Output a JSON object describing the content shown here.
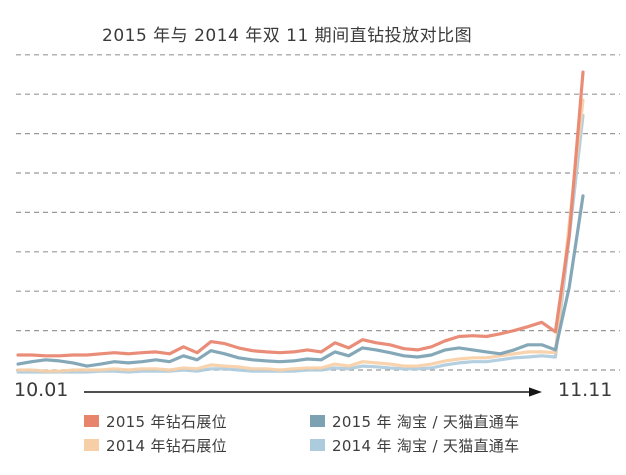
{
  "chart_data": {
    "type": "line",
    "title": "2015 年与 2014 年双 11 期间直钻投放对比图",
    "x_axis": {
      "start_label": "10.01",
      "end_label": "11.11"
    },
    "y_axis_labels_visible": false,
    "gridlines": 9,
    "grid_style": "dashed",
    "grid_color": "#999999",
    "legend_position": "bottom",
    "x": [
      "10.01",
      "10.02",
      "10.03",
      "10.04",
      "10.05",
      "10.06",
      "10.07",
      "10.08",
      "10.09",
      "10.10",
      "10.11",
      "10.12",
      "10.13",
      "10.14",
      "10.15",
      "10.16",
      "10.17",
      "10.18",
      "10.19",
      "10.20",
      "10.21",
      "10.22",
      "10.23",
      "10.24",
      "10.25",
      "10.26",
      "10.27",
      "10.28",
      "10.29",
      "10.30",
      "10.31",
      "11.01",
      "11.02",
      "11.03",
      "11.04",
      "11.05",
      "11.06",
      "11.07",
      "11.08",
      "11.09",
      "11.10",
      "11.11"
    ],
    "y_unit_note": "values in gridline units, 0 = bottom gridline, 1 per gridline step",
    "ylim": [
      -0.1,
      8.2
    ],
    "series": [
      {
        "name": "2014 年 淘宝 / 天猫直通车",
        "color": "#ACCBDD",
        "values": [
          -0.05,
          -0.05,
          -0.05,
          -0.05,
          -0.05,
          -0.05,
          -0.03,
          -0.03,
          -0.05,
          -0.03,
          -0.03,
          -0.03,
          0,
          -0.03,
          0.03,
          0.03,
          0,
          -0.03,
          -0.03,
          -0.03,
          -0.03,
          0,
          0,
          0.05,
          0.03,
          0.1,
          0.08,
          0.05,
          0.03,
          0.03,
          0.05,
          0.13,
          0.18,
          0.21,
          0.21,
          0.26,
          0.31,
          0.33,
          0.36,
          0.33,
          3.38,
          6.46
        ]
      },
      {
        "name": "2014 年钻石展位",
        "color": "#F7CFA6",
        "values": [
          0,
          0,
          -0.03,
          -0.03,
          0,
          0,
          0,
          0.03,
          0,
          0.03,
          0.03,
          0,
          0.05,
          0.03,
          0.13,
          0.1,
          0.08,
          0.03,
          0.03,
          0,
          0.03,
          0.05,
          0.05,
          0.15,
          0.1,
          0.21,
          0.18,
          0.15,
          0.1,
          0.1,
          0.15,
          0.23,
          0.28,
          0.31,
          0.31,
          0.36,
          0.41,
          0.46,
          0.46,
          0.44,
          3.69,
          6.85
        ]
      },
      {
        "name": "2015 年 淘宝 / 天猫直通车",
        "color": "#7BA1B3",
        "values": [
          0.15,
          0.21,
          0.26,
          0.23,
          0.18,
          0.1,
          0.15,
          0.21,
          0.18,
          0.21,
          0.26,
          0.21,
          0.36,
          0.26,
          0.49,
          0.41,
          0.31,
          0.26,
          0.23,
          0.21,
          0.23,
          0.28,
          0.26,
          0.46,
          0.36,
          0.56,
          0.51,
          0.44,
          0.36,
          0.33,
          0.38,
          0.51,
          0.56,
          0.51,
          0.46,
          0.41,
          0.51,
          0.64,
          0.64,
          0.51,
          2.1,
          4.42
        ]
      },
      {
        "name": "2015 年钻石展位",
        "color": "#E8836C",
        "values": [
          0.38,
          0.38,
          0.36,
          0.36,
          0.38,
          0.38,
          0.41,
          0.44,
          0.41,
          0.44,
          0.46,
          0.41,
          0.59,
          0.44,
          0.72,
          0.67,
          0.56,
          0.49,
          0.46,
          0.44,
          0.46,
          0.51,
          0.46,
          0.69,
          0.56,
          0.77,
          0.69,
          0.64,
          0.54,
          0.51,
          0.59,
          0.74,
          0.85,
          0.87,
          0.85,
          0.92,
          1.0,
          1.1,
          1.21,
          0.97,
          3.4,
          7.56
        ]
      }
    ]
  }
}
